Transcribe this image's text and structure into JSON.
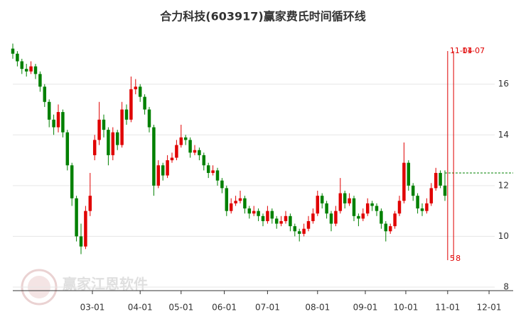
{
  "chart_data": {
    "type": "candlestick",
    "title": "合力科技(603917)赢家费氏时间循环线",
    "watermark": "赢家江恩软件",
    "xlim": [
      0,
      110
    ],
    "xticks": [
      {
        "value": 17.5,
        "label": "03-01"
      },
      {
        "value": 28,
        "label": "04-01"
      },
      {
        "value": 37,
        "label": "05-01"
      },
      {
        "value": 46.5,
        "label": "06-01"
      },
      {
        "value": 56,
        "label": "07-01"
      },
      {
        "value": 67,
        "label": "08-01"
      },
      {
        "value": 77.5,
        "label": "09-01"
      },
      {
        "value": 86.4,
        "label": "10-01"
      },
      {
        "value": 95.6,
        "label": "11-01"
      },
      {
        "value": 104.7,
        "label": "12-01"
      }
    ],
    "ylim": [
      7.86,
      17.78
    ],
    "yticks": [
      8,
      10,
      12,
      14,
      16
    ],
    "grid": true,
    "up_color": "#e00000",
    "down_color": "#008000",
    "open": [
      17.4,
      17.2,
      16.9,
      16.6,
      16.5,
      16.7,
      16.4,
      15.9,
      15.3,
      14.6,
      14.3,
      14.9,
      14.1,
      12.8,
      11.5,
      10.0,
      9.6,
      11.0,
      13.2,
      13.8,
      14.6,
      14.2,
      13.2,
      14.1,
      13.6,
      15.0,
      14.6,
      15.8,
      15.9,
      15.5,
      15.0,
      14.3,
      12.0,
      12.8,
      12.4,
      13.0,
      13.1,
      13.6,
      13.9,
      13.8,
      13.3,
      13.4,
      13.2,
      12.8,
      12.5,
      12.6,
      12.2,
      11.9,
      11.0,
      11.3,
      11.4,
      11.5,
      11.1,
      10.9,
      11.0,
      10.8,
      10.6,
      11.0,
      10.7,
      10.5,
      10.6,
      10.8,
      10.4,
      10.2,
      10.1,
      10.3,
      10.6,
      10.9,
      11.6,
      11.3,
      10.9,
      10.5,
      11.0,
      11.7,
      11.3,
      11.5,
      10.8,
      10.7,
      10.9,
      11.3,
      11.2,
      11.0,
      10.5,
      10.2,
      10.4,
      10.9,
      11.4,
      12.9,
      12.0,
      11.6,
      11.1,
      11.0,
      11.3,
      11.9,
      12.5,
      12.0
    ],
    "high": [
      17.6,
      17.3,
      17.0,
      16.8,
      16.9,
      16.8,
      16.5,
      16.0,
      15.4,
      14.8,
      15.2,
      15.0,
      14.2,
      12.9,
      11.6,
      10.5,
      11.2,
      12.5,
      14.0,
      15.3,
      14.8,
      14.3,
      14.3,
      14.2,
      15.3,
      15.2,
      16.3,
      16.2,
      16.0,
      15.6,
      15.1,
      14.4,
      13.0,
      12.9,
      13.2,
      13.3,
      13.8,
      14.4,
      14.0,
      13.9,
      13.6,
      13.5,
      13.3,
      12.9,
      12.8,
      12.7,
      12.3,
      12.0,
      11.5,
      11.6,
      11.8,
      11.6,
      11.2,
      11.2,
      11.1,
      10.9,
      11.2,
      11.1,
      10.8,
      10.8,
      11.0,
      10.9,
      10.5,
      10.3,
      10.5,
      10.8,
      11.1,
      11.8,
      11.7,
      11.4,
      11.0,
      11.2,
      12.3,
      11.8,
      11.7,
      11.6,
      10.9,
      11.1,
      11.5,
      11.4,
      11.3,
      11.1,
      10.6,
      10.5,
      11.0,
      11.6,
      13.7,
      13.0,
      12.1,
      11.7,
      11.3,
      11.5,
      12.1,
      12.7,
      12.6,
      12.6
    ],
    "low": [
      17.0,
      16.7,
      16.4,
      16.3,
      16.4,
      16.2,
      15.7,
      15.1,
      14.3,
      14.0,
      14.1,
      13.9,
      12.6,
      11.2,
      9.8,
      9.3,
      9.5,
      10.8,
      13.0,
      13.6,
      13.9,
      12.8,
      13.0,
      13.4,
      13.5,
      14.4,
      14.5,
      15.6,
      15.3,
      14.8,
      14.1,
      11.6,
      11.9,
      12.2,
      12.3,
      12.9,
      13.0,
      13.5,
      13.6,
      13.1,
      13.2,
      13.0,
      12.6,
      12.3,
      12.4,
      12.0,
      11.7,
      10.8,
      10.9,
      11.2,
      11.3,
      10.9,
      10.7,
      10.8,
      10.6,
      10.4,
      10.5,
      10.5,
      10.3,
      10.4,
      10.5,
      10.2,
      10.0,
      9.8,
      10.0,
      10.2,
      10.5,
      10.8,
      11.1,
      10.7,
      10.2,
      10.4,
      10.9,
      11.1,
      11.2,
      10.6,
      10.4,
      10.6,
      10.8,
      11.0,
      10.8,
      10.3,
      9.8,
      10.1,
      10.3,
      10.8,
      11.3,
      11.8,
      11.4,
      10.9,
      10.8,
      10.9,
      11.2,
      11.8,
      11.9,
      11.4
    ],
    "close": [
      17.2,
      16.9,
      16.6,
      16.5,
      16.7,
      16.4,
      15.9,
      15.3,
      14.6,
      14.3,
      14.9,
      14.1,
      12.8,
      11.5,
      10.0,
      9.6,
      11.0,
      11.6,
      13.8,
      14.6,
      14.2,
      13.2,
      14.1,
      13.6,
      15.0,
      14.6,
      15.8,
      15.9,
      15.5,
      15.0,
      14.3,
      12.0,
      12.8,
      12.4,
      13.0,
      13.1,
      13.6,
      13.9,
      13.8,
      13.3,
      13.4,
      13.2,
      12.8,
      12.5,
      12.6,
      12.2,
      11.9,
      11.0,
      11.3,
      11.4,
      11.5,
      11.1,
      10.9,
      11.0,
      10.8,
      10.6,
      11.0,
      10.7,
      10.5,
      10.6,
      10.8,
      10.4,
      10.2,
      10.1,
      10.3,
      10.6,
      10.9,
      11.6,
      11.3,
      10.9,
      10.5,
      11.0,
      11.7,
      11.3,
      11.5,
      10.8,
      10.7,
      10.9,
      11.3,
      11.2,
      11.0,
      10.5,
      10.2,
      10.4,
      10.9,
      11.4,
      12.9,
      12.0,
      11.6,
      11.1,
      11.0,
      11.3,
      11.9,
      12.5,
      12.0,
      11.6
    ],
    "ref_line": 12.5,
    "ref_color": "#008000",
    "cycle_lines": [
      {
        "x": 95.6,
        "top_label": "11-04",
        "bottom_label": "5"
      },
      {
        "x": 96.9,
        "top_label": "11-07",
        "bottom_label": "8"
      }
    ],
    "cycle_color": "#e00000"
  }
}
